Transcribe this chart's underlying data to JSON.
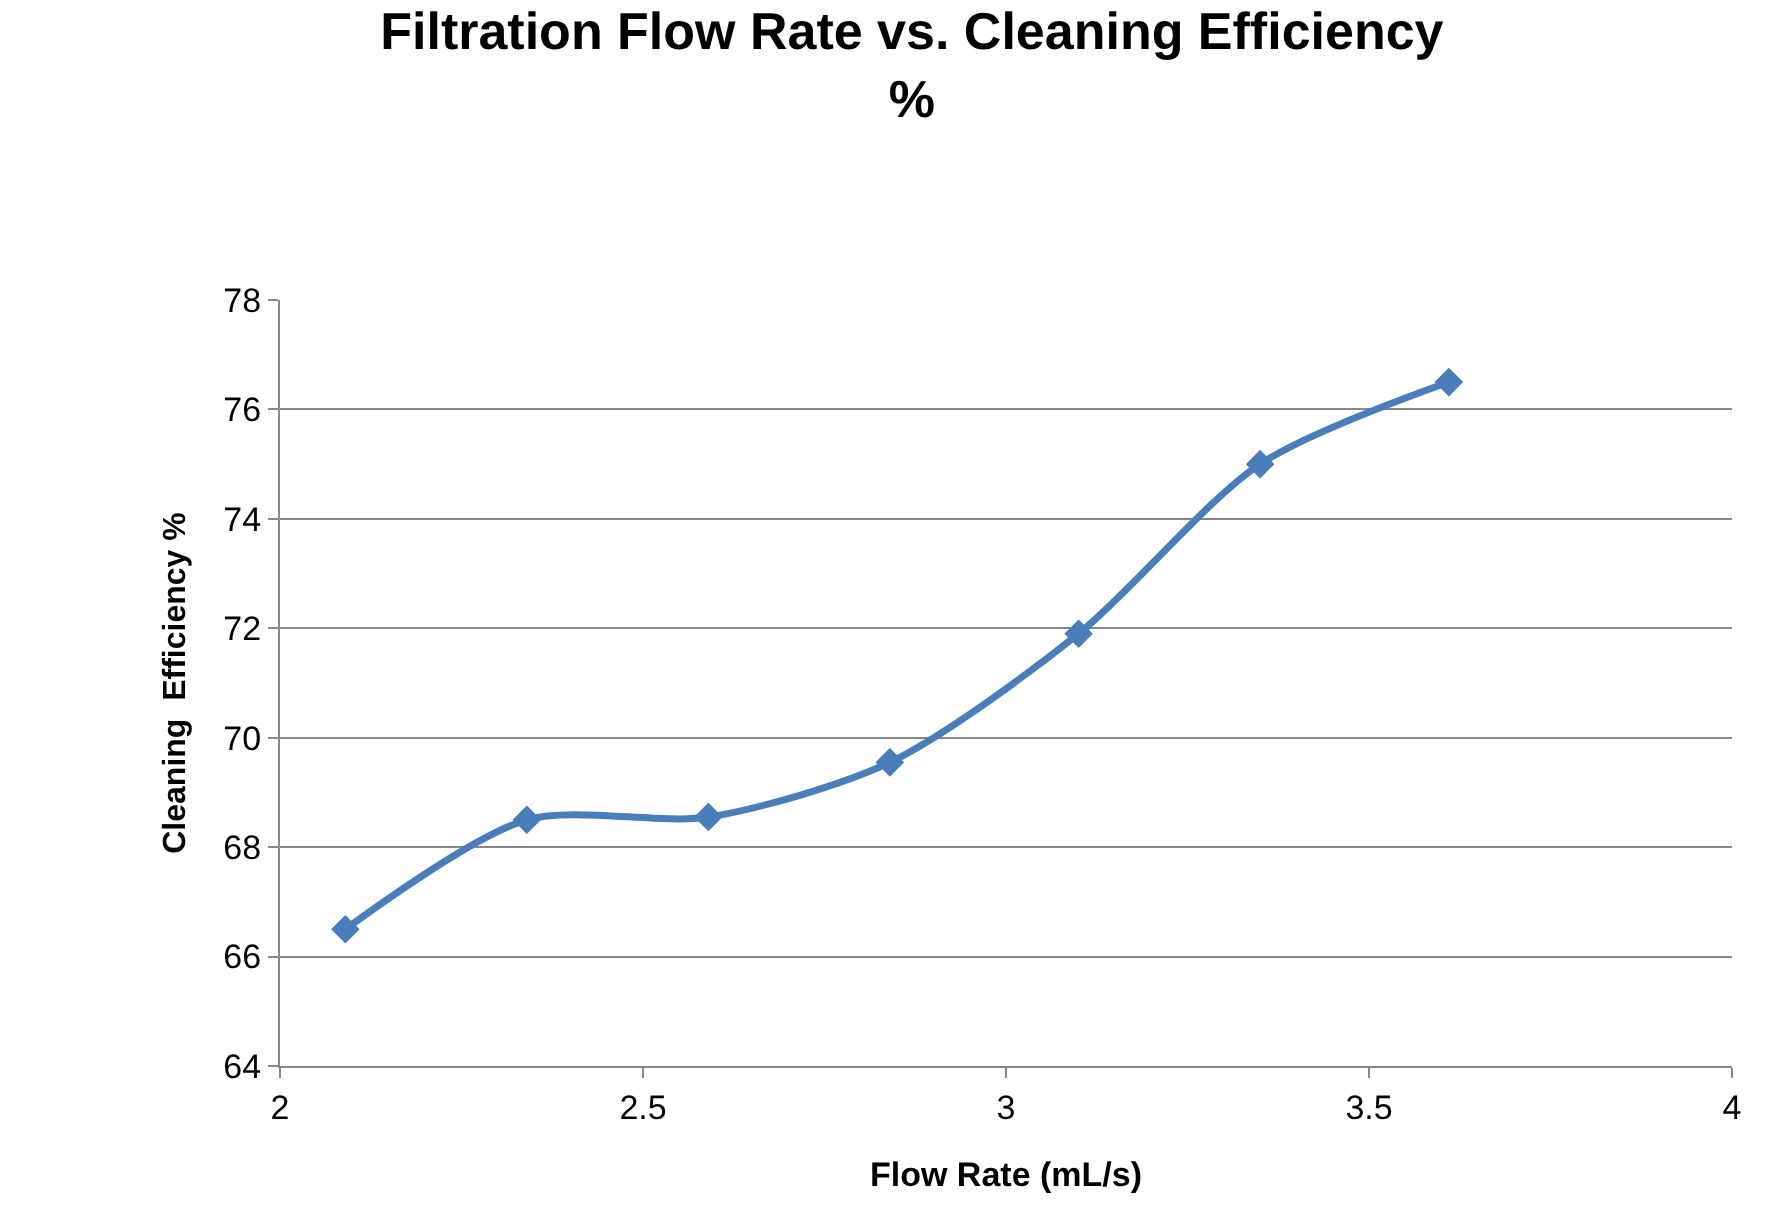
{
  "chart_data": {
    "type": "line",
    "title": "Filtration Flow Rate vs. Cleaning Efficiency %",
    "xlabel": "Flow Rate (mL/s)",
    "ylabel": "Cleaning  Efficiency %",
    "x": [
      2.09,
      2.34,
      2.59,
      2.84,
      3.1,
      3.35,
      3.61
    ],
    "series": [
      {
        "color": "#4a7ebb",
        "values": [
          66.5,
          68.5,
          68.55,
          69.55,
          71.9,
          75.0,
          76.5
        ]
      }
    ],
    "xlim": [
      2,
      4
    ],
    "xticks": [
      2,
      2.5,
      3,
      3.5,
      4
    ],
    "ylim": [
      64,
      78
    ],
    "yticks": [
      64,
      66,
      68,
      70,
      72,
      74,
      76,
      78
    ],
    "grid": "y",
    "legend": false,
    "marker": "diamond",
    "line_style": "solid"
  }
}
